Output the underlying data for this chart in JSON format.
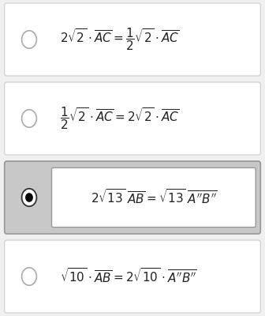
{
  "bg_color": "#f0f0f0",
  "panel_color": "#ffffff",
  "selected_bg": "#c8c8c8",
  "selected_inner_bg": "#ffffff",
  "panel_border_color": "#cccccc",
  "selected_border_color": "#999999",
  "text_color": "#222222",
  "radio_border_unsel": "#aaaaaa",
  "radio_border_sel": "#333333",
  "figsize": [
    3.36,
    4.0
  ],
  "dpi": 100,
  "options": [
    {
      "selected": false,
      "latex": "$2\\sqrt{2} \\cdot \\overline{AC} = \\dfrac{1}{2}\\sqrt{2} \\cdot \\overline{AC}$"
    },
    {
      "selected": false,
      "latex": "$\\dfrac{1}{2}\\sqrt{2} \\cdot \\overline{AC} = 2\\sqrt{2} \\cdot \\overline{AC}$"
    },
    {
      "selected": true,
      "latex": "$2\\sqrt{13}\\; \\overline{AB} = \\sqrt{13}\\; \\overline{A''B''}$"
    },
    {
      "selected": false,
      "latex": "$\\sqrt{10} \\cdot \\overline{AB} = 2\\sqrt{10} \\cdot \\overline{A''B''}$"
    }
  ]
}
